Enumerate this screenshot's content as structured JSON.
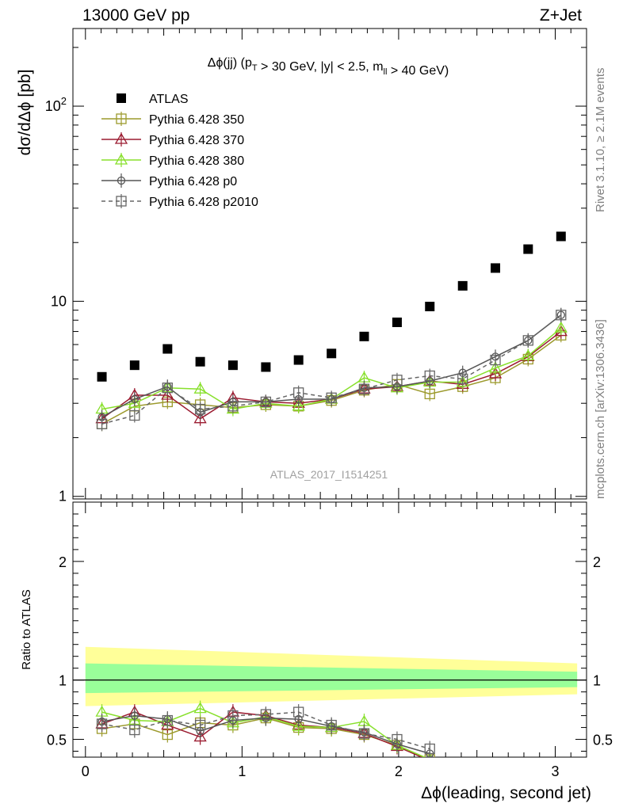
{
  "header": {
    "energy_label": "13000 GeV pp",
    "process_label": "Z+Jet"
  },
  "side_text": {
    "rivet": "Rivet 3.1.10, ≥ 2.1M events",
    "mcplots": "mcplots.cern.ch [arXiv:1306.3436]"
  },
  "watermark": "ATLAS_2017_I1514251",
  "chart_data": [
    {
      "type": "scatter",
      "panel": "main",
      "title": "Δϕ(jj) (p_T > 30 GeV, |y| < 2.5, m_ll > 40 GeV)",
      "ylabel": "dσ/dΔϕ [pb]",
      "yscale": "log",
      "ylim": [
        0.97,
        250
      ],
      "xlim": [
        -0.08,
        3.2
      ],
      "ytick_labels": [
        "1",
        "10",
        "10²"
      ],
      "x": [
        0.105,
        0.314,
        0.524,
        0.733,
        0.942,
        1.152,
        1.361,
        1.571,
        1.78,
        1.99,
        2.199,
        2.409,
        2.618,
        2.827,
        3.037
      ],
      "series": [
        {
          "name": "ATLAS",
          "color": "#000000",
          "marker": "filled-square",
          "line": "none",
          "values": [
            4.1,
            4.7,
            5.7,
            4.9,
            4.7,
            4.6,
            5.0,
            5.4,
            6.6,
            7.8,
            9.4,
            12.0,
            14.8,
            18.5,
            21.5
          ]
        },
        {
          "name": "Pythia 6.428 350",
          "color": "#9c9a2c",
          "marker": "open-square",
          "line": "solid",
          "values": [
            2.35,
            2.9,
            3.05,
            2.95,
            2.85,
            2.95,
            2.9,
            3.1,
            3.5,
            3.75,
            3.35,
            3.65,
            4.05,
            5.05,
            6.7
          ]
        },
        {
          "name": "Pythia 6.428 370",
          "color": "#9b1b30",
          "marker": "open-triangle",
          "line": "solid",
          "values": [
            2.5,
            3.3,
            3.3,
            2.5,
            3.2,
            3.05,
            3.0,
            3.15,
            3.55,
            3.65,
            3.9,
            3.75,
            4.25,
            5.2,
            7.0
          ]
        },
        {
          "name": "Pythia 6.428 380",
          "color": "#88e02c",
          "marker": "open-triangle",
          "line": "solid",
          "values": [
            2.8,
            3.0,
            3.6,
            3.55,
            2.8,
            3.0,
            2.9,
            3.15,
            4.05,
            3.6,
            3.85,
            3.85,
            4.55,
            5.25,
            7.3
          ]
        },
        {
          "name": "Pythia 6.428 p0",
          "color": "#555555",
          "marker": "open-circle",
          "line": "solid",
          "values": [
            2.55,
            3.15,
            3.65,
            2.7,
            3.05,
            3.05,
            3.15,
            3.15,
            3.6,
            3.65,
            3.9,
            4.3,
            5.2,
            6.3,
            8.5
          ]
        },
        {
          "name": "Pythia 6.428 p2010",
          "color": "#666666",
          "marker": "open-square",
          "line": "dashed",
          "values": [
            2.35,
            2.6,
            3.6,
            2.8,
            2.9,
            3.05,
            3.4,
            3.2,
            3.55,
            3.95,
            4.15,
            4.0,
            5.0,
            6.3,
            8.5
          ]
        }
      ]
    },
    {
      "type": "scatter",
      "panel": "ratio",
      "ylabel": "Ratio to ATLAS",
      "xlabel": "Δϕ(leading, second jet)",
      "ylim": [
        0.35,
        2.5
      ],
      "xlim": [
        -0.08,
        3.2
      ],
      "ytick_labels": [
        "0.5",
        "1",
        "2"
      ],
      "xtick_labels": [
        "0",
        "1",
        "2",
        "3"
      ],
      "reference_line": 1,
      "bands": {
        "outer_color": "#ffff99",
        "inner_color": "#99ff99",
        "outer_x": [
          0.0,
          3.14
        ],
        "outer_low": [
          0.78,
          0.88
        ],
        "outer_high": [
          1.28,
          1.14
        ],
        "inner_low": [
          0.89,
          0.94
        ],
        "inner_high": [
          1.14,
          1.07
        ]
      },
      "x": [
        0.105,
        0.314,
        0.524,
        0.733,
        0.942,
        1.152,
        1.361,
        1.571,
        1.78,
        1.99,
        2.199
      ],
      "series": [
        {
          "name": "Pythia 6.428 350",
          "values": [
            0.59,
            0.63,
            0.54,
            0.64,
            0.62,
            0.68,
            0.6,
            0.59,
            0.54,
            0.45,
            0.33
          ]
        },
        {
          "name": "Pythia 6.428 370",
          "values": [
            0.63,
            0.73,
            0.62,
            0.52,
            0.73,
            0.7,
            0.62,
            0.6,
            0.55,
            0.44,
            0.32
          ]
        },
        {
          "name": "Pythia 6.428 380",
          "values": [
            0.73,
            0.66,
            0.65,
            0.76,
            0.64,
            0.69,
            0.61,
            0.6,
            0.65,
            0.45,
            0.33
          ]
        },
        {
          "name": "Pythia 6.428 p0",
          "values": [
            0.65,
            0.7,
            0.67,
            0.57,
            0.66,
            0.68,
            0.67,
            0.61,
            0.56,
            0.46,
            0.38
          ]
        },
        {
          "name": "Pythia 6.428 p2010",
          "values": [
            0.63,
            0.58,
            0.66,
            0.62,
            0.7,
            0.71,
            0.73,
            0.62,
            0.55,
            0.5,
            0.42
          ]
        }
      ]
    }
  ]
}
